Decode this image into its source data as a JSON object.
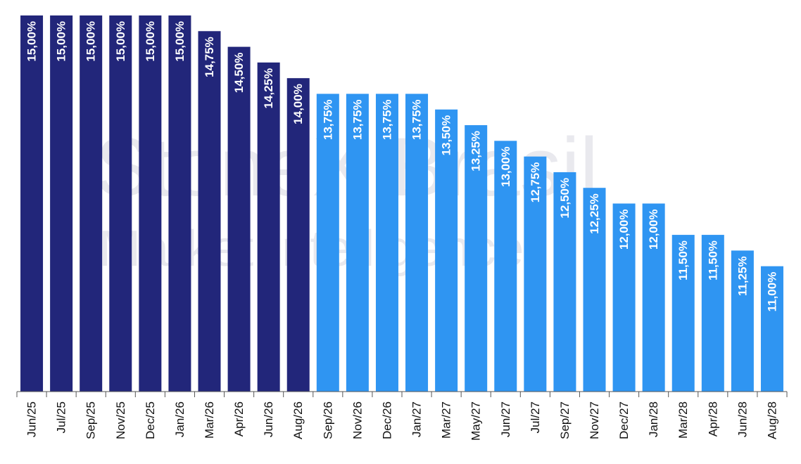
{
  "watermark": {
    "line1": "StoneX Brasil",
    "line2": "Market Intelligence"
  },
  "colors": {
    "dark_bar": "#22267a",
    "light_bar": "#2f95f2",
    "axis": "#555555"
  },
  "chart_data": {
    "type": "bar",
    "categories": [
      "Jun/25",
      "Jul/25",
      "Sep/25",
      "Nov/25",
      "Dec/25",
      "Jan/26",
      "Mar/26",
      "Apr/26",
      "Jun/26",
      "Aug/26",
      "Sep/26",
      "Nov/26",
      "Dec/26",
      "Jan/27",
      "Mar/27",
      "May/27",
      "Jun/27",
      "Jul/27",
      "Sep/27",
      "Nov/27",
      "Dec/27",
      "Jan/28",
      "Mar/28",
      "Apr/28",
      "Jun/28",
      "Aug/28"
    ],
    "values": [
      15.0,
      15.0,
      15.0,
      15.0,
      15.0,
      15.0,
      14.75,
      14.5,
      14.25,
      14.0,
      13.75,
      13.75,
      13.75,
      13.75,
      13.5,
      13.25,
      13.0,
      12.75,
      12.5,
      12.25,
      12.0,
      12.0,
      11.5,
      11.5,
      11.25,
      11.0
    ],
    "labels": [
      "15,00%",
      "15,00%",
      "15,00%",
      "15,00%",
      "15,00%",
      "15,00%",
      "14,75%",
      "14,50%",
      "14,25%",
      "14,00%",
      "13,75%",
      "13,75%",
      "13,75%",
      "13,75%",
      "13,50%",
      "13,25%",
      "13,00%",
      "12,75%",
      "12,50%",
      "12,25%",
      "12,00%",
      "12,00%",
      "11,50%",
      "11,50%",
      "11,25%",
      "11,00%"
    ],
    "series_split_index": 10,
    "ylim": [
      9.0,
      15.0
    ],
    "grid": false,
    "title": "",
    "xlabel": "",
    "ylabel": ""
  }
}
